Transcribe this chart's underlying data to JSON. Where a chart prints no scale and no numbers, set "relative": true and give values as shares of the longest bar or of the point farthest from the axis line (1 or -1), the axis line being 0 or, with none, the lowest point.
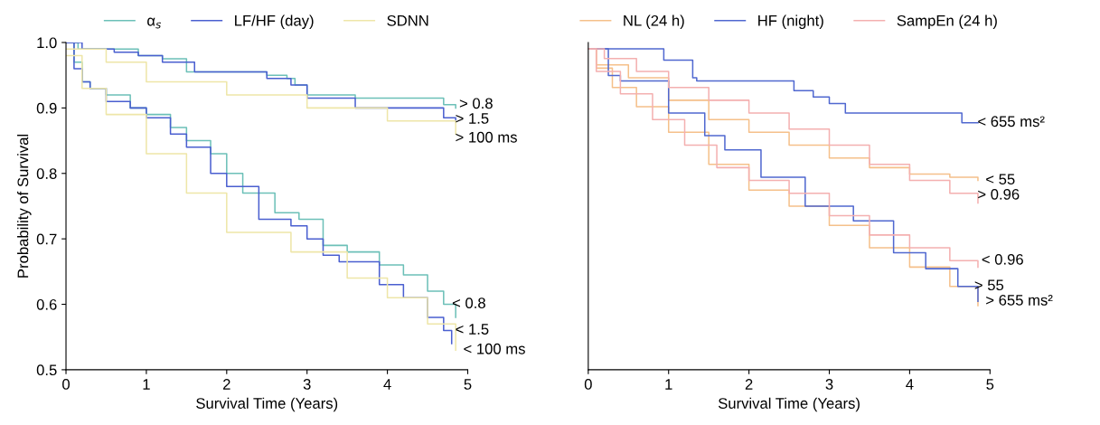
{
  "chart_data": [
    {
      "type": "step",
      "xlabel": "Survival Time (Years)",
      "ylabel": "Probability of Survival",
      "xlim": [
        0,
        5
      ],
      "ylim": [
        0.5,
        1.0
      ],
      "xticks": [
        0,
        1,
        2,
        3,
        4,
        5
      ],
      "yticks": [
        {
          "value": 0.5,
          "label": "0.5"
        },
        {
          "value": 0.6,
          "label": "0.6"
        },
        {
          "value": 0.7,
          "label": "0.7"
        },
        {
          "value": 0.8,
          "label": "0.8"
        },
        {
          "value": 0.9,
          "label": "0.9"
        },
        {
          "value": 1.0,
          "label": "1.0"
        }
      ],
      "legend": "top",
      "grid": false,
      "marker": "none",
      "line_style": "solid",
      "series": [
        {
          "name": "α$_{s}$",
          "color": "#6cc0b8",
          "x": [
            0,
            0.15,
            0.6,
            0.9,
            1.2,
            1.5,
            2.5,
            2.75,
            2.85,
            3.0,
            3.6,
            4.7,
            4.85
          ],
          "values": [
            1.0,
            0.99,
            0.99,
            0.98,
            0.975,
            0.955,
            0.95,
            0.945,
            0.935,
            0.92,
            0.915,
            0.905,
            0.9
          ]
        },
        {
          "color": "#6cc0b8",
          "x": [
            0,
            0.1,
            0.2,
            0.3,
            0.5,
            0.8,
            1.0,
            1.3,
            1.5,
            1.8,
            2.0,
            2.2,
            2.6,
            2.9,
            3.2,
            3.5,
            3.9,
            4.2,
            4.5,
            4.7,
            4.85
          ],
          "values": [
            1.0,
            0.97,
            0.94,
            0.93,
            0.92,
            0.9,
            0.89,
            0.87,
            0.85,
            0.83,
            0.8,
            0.77,
            0.74,
            0.73,
            0.69,
            0.68,
            0.66,
            0.645,
            0.62,
            0.6,
            0.58
          ]
        },
        {
          "name": "LF/HF (day)",
          "color": "#4a5fd0",
          "x": [
            0,
            0.2,
            0.6,
            0.9,
            1.2,
            1.6,
            2.5,
            2.8,
            3.0,
            3.6,
            4.7,
            4.85
          ],
          "values": [
            1.0,
            0.99,
            0.985,
            0.98,
            0.97,
            0.955,
            0.945,
            0.935,
            0.915,
            0.9,
            0.885,
            0.88
          ]
        },
        {
          "color": "#4a5fd0",
          "x": [
            0,
            0.1,
            0.2,
            0.3,
            0.5,
            0.8,
            1.0,
            1.3,
            1.5,
            1.8,
            2.0,
            2.4,
            2.8,
            3.0,
            3.2,
            3.4,
            3.9,
            4.2,
            4.5,
            4.7,
            4.8
          ],
          "values": [
            1.0,
            0.96,
            0.94,
            0.93,
            0.91,
            0.9,
            0.885,
            0.86,
            0.84,
            0.8,
            0.78,
            0.73,
            0.72,
            0.7,
            0.675,
            0.665,
            0.63,
            0.61,
            0.58,
            0.56,
            0.54
          ]
        },
        {
          "name": "SDNN",
          "color": "#eee6a8",
          "x": [
            0,
            0.5,
            1.0,
            2.0,
            3.0,
            4.0,
            4.85
          ],
          "values": [
            0.99,
            0.97,
            0.94,
            0.92,
            0.9,
            0.88,
            0.86
          ]
        },
        {
          "color": "#eee6a8",
          "x": [
            0,
            0.2,
            0.5,
            1.0,
            1.5,
            2.0,
            2.8,
            3.5,
            4.0,
            4.5,
            4.85
          ],
          "values": [
            0.98,
            0.93,
            0.89,
            0.83,
            0.77,
            0.71,
            0.68,
            0.64,
            0.61,
            0.57,
            0.53
          ]
        }
      ],
      "annotations": [
        {
          "text": "> 0.8",
          "x": 4.8,
          "y": 0.905
        },
        {
          "text": "> 1.5",
          "x": 4.75,
          "y": 0.885
        },
        {
          "text": "> 100 ms",
          "x": 4.6,
          "y": 0.88
        },
        {
          "text": "< 0.8",
          "x": 4.7,
          "y": 0.6
        },
        {
          "text": "< 1.5",
          "x": 4.75,
          "y": 0.56
        },
        {
          "text": "< 100 ms",
          "x": 4.85,
          "y": 0.53
        }
      ]
    },
    {
      "type": "step",
      "xlabel": "Survival Time (Years)",
      "xlim": [
        0,
        5
      ],
      "xticks": [
        0,
        1,
        2,
        3,
        4,
        5
      ],
      "relative": true,
      "tick_labels": "x",
      "legend": "top",
      "grid": false,
      "marker": "none",
      "line_style": "solid",
      "series": [
        {
          "name": "NL (24 h)",
          "color": "#f5c08a",
          "x": [
            0,
            0.1,
            0.5,
            1.0,
            1.5,
            2.0,
            2.5,
            3.0,
            3.5,
            4.0,
            4.5,
            4.85
          ],
          "values": [
            1.0,
            0.95,
            0.91,
            0.84,
            0.78,
            0.74,
            0.7,
            0.66,
            0.63,
            0.61,
            0.6,
            0.59
          ]
        },
        {
          "color": "#f5c08a",
          "x": [
            0,
            0.1,
            0.3,
            0.6,
            1.0,
            1.5,
            2.0,
            2.5,
            3.0,
            3.5,
            4.0,
            4.5,
            4.85
          ],
          "values": [
            1.0,
            0.94,
            0.88,
            0.82,
            0.74,
            0.64,
            0.56,
            0.51,
            0.45,
            0.38,
            0.32,
            0.26,
            0.2
          ]
        },
        {
          "name": "HF (night)",
          "color": "#5068d0",
          "x": [
            0,
            0.94,
            1.3,
            1.35,
            2.56,
            2.8,
            3.0,
            3.2,
            4.65,
            4.85
          ],
          "values": [
            1.0,
            0.965,
            0.91,
            0.9,
            0.87,
            0.85,
            0.83,
            0.8,
            0.77,
            0.77
          ]
        },
        {
          "color": "#5068d0",
          "x": [
            0,
            0.25,
            0.4,
            1.0,
            1.45,
            1.7,
            2.15,
            2.7,
            3.3,
            3.8,
            4.2,
            4.6,
            4.85
          ],
          "values": [
            1.0,
            0.917,
            0.9,
            0.8,
            0.73,
            0.685,
            0.6,
            0.51,
            0.464,
            0.365,
            0.315,
            0.26,
            0.213
          ]
        },
        {
          "name": "SampEn (24 h)",
          "color": "#f4b0b0",
          "x": [
            0,
            0.2,
            0.6,
            1.0,
            1.5,
            2.0,
            2.5,
            3.0,
            3.5,
            4.0,
            4.5,
            4.85
          ],
          "values": [
            1.0,
            0.97,
            0.93,
            0.88,
            0.84,
            0.8,
            0.75,
            0.7,
            0.64,
            0.59,
            0.55,
            0.52
          ]
        },
        {
          "color": "#f4b0b0",
          "x": [
            0,
            0.1,
            0.4,
            0.8,
            1.2,
            1.6,
            2.0,
            2.5,
            3.0,
            3.5,
            4.0,
            4.5,
            4.85
          ],
          "values": [
            1.0,
            0.93,
            0.86,
            0.78,
            0.7,
            0.63,
            0.59,
            0.55,
            0.48,
            0.42,
            0.38,
            0.34,
            0.32
          ]
        }
      ],
      "annotations": [
        {
          "text": "< 655 ms²",
          "x": 4.75,
          "y": 0.77
        },
        {
          "text": "< 55",
          "x": 4.85,
          "y": 0.59
        },
        {
          "text": "> 0.96",
          "x": 4.6,
          "y": 0.55
        },
        {
          "text": "< 0.96",
          "x": 4.8,
          "y": 0.34
        },
        {
          "text": "> 655 ms²",
          "x": 4.85,
          "y": 0.213
        },
        {
          "text": "> 55",
          "x": 4.7,
          "y": 0.26
        }
      ]
    }
  ]
}
